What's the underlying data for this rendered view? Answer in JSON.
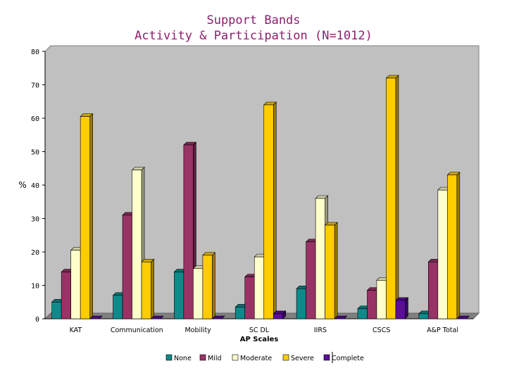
{
  "chart_data": {
    "type": "bar",
    "title": "Support Bands",
    "subtitle": "Activity & Participation (N=1012)",
    "xlabel": "AP Scales",
    "ylabel": "%",
    "ylim": [
      0,
      80
    ],
    "yticks": [
      0,
      10,
      20,
      30,
      40,
      50,
      60,
      70,
      80
    ],
    "grid": false,
    "legend": "bottom",
    "categories": [
      "KAT",
      "Communication",
      "Mobility",
      "SC DL",
      "IIRS",
      "CSCS",
      "A&P Total"
    ],
    "series": [
      {
        "name": "None",
        "color": "#0e8a8a",
        "values": [
          5,
          7,
          14,
          3.5,
          9,
          3,
          1.5
        ]
      },
      {
        "name": "Mild",
        "color": "#993366",
        "values": [
          14,
          31,
          52,
          12.5,
          23,
          8.5,
          17
        ]
      },
      {
        "name": "Moderate",
        "color": "#ffffcc",
        "values": [
          20.5,
          44.5,
          15,
          18.5,
          36,
          11.5,
          38.5
        ]
      },
      {
        "name": "Severe",
        "color": "#ffcc00",
        "values": [
          60.5,
          17,
          19,
          64,
          28,
          72,
          43
        ]
      },
      {
        "name": "Complete",
        "color": "#5b0d9b",
        "values": [
          0,
          0,
          0,
          1.5,
          0,
          5.5,
          0
        ]
      }
    ]
  }
}
